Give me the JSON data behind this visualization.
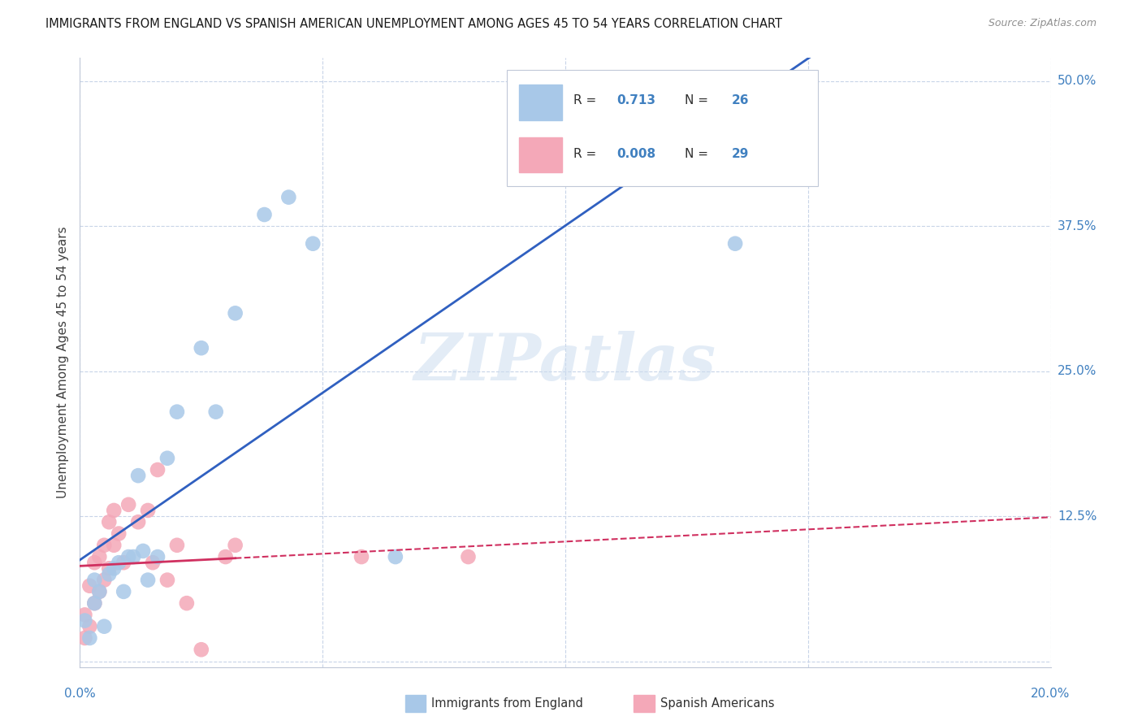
{
  "title": "IMMIGRANTS FROM ENGLAND VS SPANISH AMERICAN UNEMPLOYMENT AMONG AGES 45 TO 54 YEARS CORRELATION CHART",
  "source": "Source: ZipAtlas.com",
  "ylabel": "Unemployment Among Ages 45 to 54 years",
  "xmin": 0.0,
  "xmax": 0.2,
  "ymin": -0.005,
  "ymax": 0.52,
  "xticks": [
    0.0,
    0.05,
    0.1,
    0.15,
    0.2
  ],
  "yticks": [
    0.0,
    0.125,
    0.25,
    0.375,
    0.5
  ],
  "ytick_labels": [
    "",
    "12.5%",
    "25.0%",
    "37.5%",
    "50.0%"
  ],
  "blue_R": "0.713",
  "blue_N": "26",
  "pink_R": "0.008",
  "pink_N": "29",
  "legend1_label": "Immigrants from England",
  "legend2_label": "Spanish Americans",
  "blue_color": "#a8c8e8",
  "pink_color": "#f4a8b8",
  "blue_line_color": "#3060c0",
  "pink_line_color": "#d03060",
  "blue_scatter_x": [
    0.001,
    0.002,
    0.003,
    0.003,
    0.004,
    0.005,
    0.006,
    0.007,
    0.008,
    0.009,
    0.01,
    0.011,
    0.012,
    0.013,
    0.014,
    0.016,
    0.018,
    0.02,
    0.025,
    0.028,
    0.032,
    0.038,
    0.043,
    0.048,
    0.065,
    0.135
  ],
  "blue_scatter_y": [
    0.035,
    0.02,
    0.05,
    0.07,
    0.06,
    0.03,
    0.075,
    0.08,
    0.085,
    0.06,
    0.09,
    0.09,
    0.16,
    0.095,
    0.07,
    0.09,
    0.175,
    0.215,
    0.27,
    0.215,
    0.3,
    0.385,
    0.4,
    0.36,
    0.09,
    0.36
  ],
  "pink_scatter_x": [
    0.001,
    0.001,
    0.002,
    0.002,
    0.003,
    0.003,
    0.004,
    0.004,
    0.005,
    0.005,
    0.006,
    0.006,
    0.007,
    0.007,
    0.008,
    0.009,
    0.01,
    0.012,
    0.014,
    0.015,
    0.016,
    0.018,
    0.02,
    0.022,
    0.025,
    0.03,
    0.032,
    0.058,
    0.08
  ],
  "pink_scatter_y": [
    0.02,
    0.04,
    0.03,
    0.065,
    0.05,
    0.085,
    0.06,
    0.09,
    0.07,
    0.1,
    0.08,
    0.12,
    0.1,
    0.13,
    0.11,
    0.085,
    0.135,
    0.12,
    0.13,
    0.085,
    0.165,
    0.07,
    0.1,
    0.05,
    0.01,
    0.09,
    0.1,
    0.09,
    0.09
  ],
  "pink_line_solid_end": 0.032,
  "watermark": "ZIPatlas",
  "background_color": "#ffffff",
  "grid_color": "#c8d4e8",
  "axis_color": "#4080c0",
  "text_color": "#1a1a1a"
}
